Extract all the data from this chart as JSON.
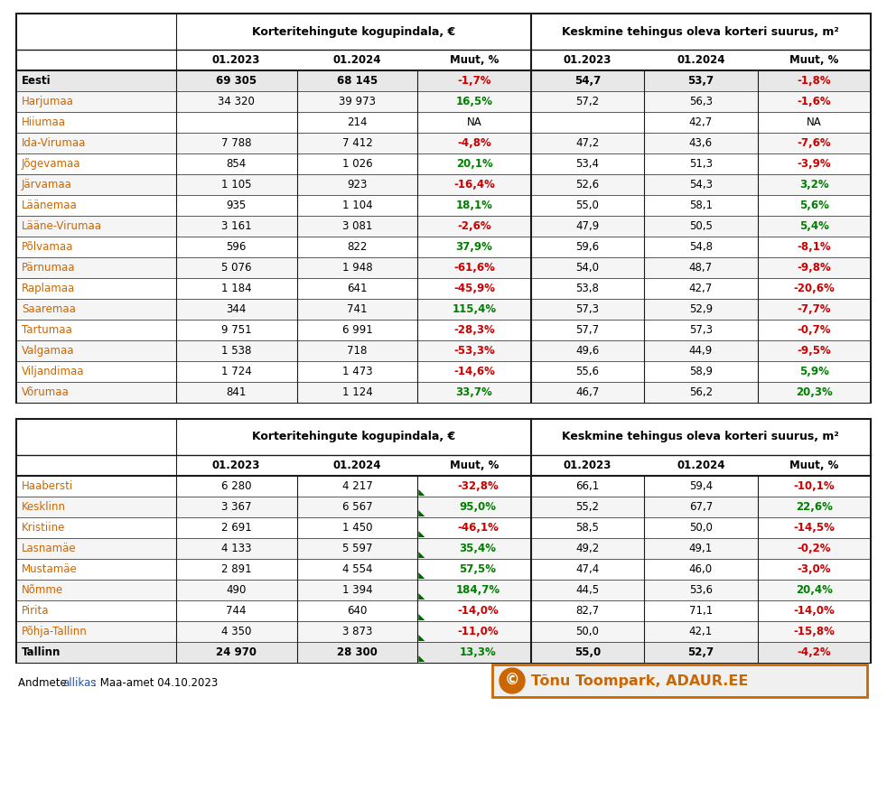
{
  "table1_header1": "Korteritehingute kogupindala, €",
  "table1_header2": "Keskmine tehingus oleva korteri suurus, m²",
  "col_headers": [
    "01.2023",
    "01.2024",
    "Muut, %"
  ],
  "table1_rows": [
    {
      "label": "Eesti",
      "bold": true,
      "v1": "69 305",
      "v2": "68 145",
      "pct1": "-1,7%",
      "pct1_color": "red",
      "v3": "54,7",
      "v4": "53,7",
      "pct2": "-1,8%",
      "pct2_color": "red"
    },
    {
      "label": "Harjumaa",
      "bold": false,
      "v1": "34 320",
      "v2": "39 973",
      "pct1": "16,5%",
      "pct1_color": "green",
      "v3": "57,2",
      "v4": "56,3",
      "pct2": "-1,6%",
      "pct2_color": "red"
    },
    {
      "label": "Hiiumaa",
      "bold": false,
      "v1": "",
      "v2": "214",
      "pct1": "NA",
      "pct1_color": "black",
      "v3": "",
      "v4": "42,7",
      "pct2": "NA",
      "pct2_color": "black"
    },
    {
      "label": "Ida-Virumaa",
      "bold": false,
      "v1": "7 788",
      "v2": "7 412",
      "pct1": "-4,8%",
      "pct1_color": "red",
      "v3": "47,2",
      "v4": "43,6",
      "pct2": "-7,6%",
      "pct2_color": "red"
    },
    {
      "label": "Jõgevamaa",
      "bold": false,
      "v1": "854",
      "v2": "1 026",
      "pct1": "20,1%",
      "pct1_color": "green",
      "v3": "53,4",
      "v4": "51,3",
      "pct2": "-3,9%",
      "pct2_color": "red"
    },
    {
      "label": "Järvamaa",
      "bold": false,
      "v1": "1 105",
      "v2": "923",
      "pct1": "-16,4%",
      "pct1_color": "red",
      "v3": "52,6",
      "v4": "54,3",
      "pct2": "3,2%",
      "pct2_color": "green"
    },
    {
      "label": "Läänemaa",
      "bold": false,
      "v1": "935",
      "v2": "1 104",
      "pct1": "18,1%",
      "pct1_color": "green",
      "v3": "55,0",
      "v4": "58,1",
      "pct2": "5,6%",
      "pct2_color": "green"
    },
    {
      "label": "Lääne-Virumaa",
      "bold": false,
      "v1": "3 161",
      "v2": "3 081",
      "pct1": "-2,6%",
      "pct1_color": "red",
      "v3": "47,9",
      "v4": "50,5",
      "pct2": "5,4%",
      "pct2_color": "green"
    },
    {
      "label": "Põlvamaa",
      "bold": false,
      "v1": "596",
      "v2": "822",
      "pct1": "37,9%",
      "pct1_color": "green",
      "v3": "59,6",
      "v4": "54,8",
      "pct2": "-8,1%",
      "pct2_color": "red"
    },
    {
      "label": "Pärnumaa",
      "bold": false,
      "v1": "5 076",
      "v2": "1 948",
      "pct1": "-61,6%",
      "pct1_color": "red",
      "v3": "54,0",
      "v4": "48,7",
      "pct2": "-9,8%",
      "pct2_color": "red"
    },
    {
      "label": "Raplamaa",
      "bold": false,
      "v1": "1 184",
      "v2": "641",
      "pct1": "-45,9%",
      "pct1_color": "red",
      "v3": "53,8",
      "v4": "42,7",
      "pct2": "-20,6%",
      "pct2_color": "red"
    },
    {
      "label": "Saaremaa",
      "bold": false,
      "v1": "344",
      "v2": "741",
      "pct1": "115,4%",
      "pct1_color": "green",
      "v3": "57,3",
      "v4": "52,9",
      "pct2": "-7,7%",
      "pct2_color": "red"
    },
    {
      "label": "Tartumaa",
      "bold": false,
      "v1": "9 751",
      "v2": "6 991",
      "pct1": "-28,3%",
      "pct1_color": "red",
      "v3": "57,7",
      "v4": "57,3",
      "pct2": "-0,7%",
      "pct2_color": "red"
    },
    {
      "label": "Valgamaa",
      "bold": false,
      "v1": "1 538",
      "v2": "718",
      "pct1": "-53,3%",
      "pct1_color": "red",
      "v3": "49,6",
      "v4": "44,9",
      "pct2": "-9,5%",
      "pct2_color": "red"
    },
    {
      "label": "Viljandimaa",
      "bold": false,
      "v1": "1 724",
      "v2": "1 473",
      "pct1": "-14,6%",
      "pct1_color": "red",
      "v3": "55,6",
      "v4": "58,9",
      "pct2": "5,9%",
      "pct2_color": "green"
    },
    {
      "label": "Võrumaa",
      "bold": false,
      "v1": "841",
      "v2": "1 124",
      "pct1": "33,7%",
      "pct1_color": "green",
      "v3": "46,7",
      "v4": "56,2",
      "pct2": "20,3%",
      "pct2_color": "green"
    }
  ],
  "table2_rows": [
    {
      "label": "Haabersti",
      "bold": false,
      "v1": "6 280",
      "v2": "4 217",
      "pct1": "-32,8%",
      "pct1_color": "red",
      "v3": "66,1",
      "v4": "59,4",
      "pct2": "-10,1%",
      "pct2_color": "red"
    },
    {
      "label": "Kesklinn",
      "bold": false,
      "v1": "3 367",
      "v2": "6 567",
      "pct1": "95,0%",
      "pct1_color": "green",
      "v3": "55,2",
      "v4": "67,7",
      "pct2": "22,6%",
      "pct2_color": "green"
    },
    {
      "label": "Kristiine",
      "bold": false,
      "v1": "2 691",
      "v2": "1 450",
      "pct1": "-46,1%",
      "pct1_color": "red",
      "v3": "58,5",
      "v4": "50,0",
      "pct2": "-14,5%",
      "pct2_color": "red"
    },
    {
      "label": "Lasnamäe",
      "bold": false,
      "v1": "4 133",
      "v2": "5 597",
      "pct1": "35,4%",
      "pct1_color": "green",
      "v3": "49,2",
      "v4": "49,1",
      "pct2": "-0,2%",
      "pct2_color": "red"
    },
    {
      "label": "Mustamäe",
      "bold": false,
      "v1": "2 891",
      "v2": "4 554",
      "pct1": "57,5%",
      "pct1_color": "green",
      "v3": "47,4",
      "v4": "46,0",
      "pct2": "-3,0%",
      "pct2_color": "red"
    },
    {
      "label": "Nõmme",
      "bold": false,
      "v1": "490",
      "v2": "1 394",
      "pct1": "184,7%",
      "pct1_color": "green",
      "v3": "44,5",
      "v4": "53,6",
      "pct2": "20,4%",
      "pct2_color": "green"
    },
    {
      "label": "Pirita",
      "bold": false,
      "v1": "744",
      "v2": "640",
      "pct1": "-14,0%",
      "pct1_color": "red",
      "v3": "82,7",
      "v4": "71,1",
      "pct2": "-14,0%",
      "pct2_color": "red"
    },
    {
      "label": "Põhja-Tallinn",
      "bold": false,
      "v1": "4 350",
      "v2": "3 873",
      "pct1": "-11,0%",
      "pct1_color": "red",
      "v3": "50,0",
      "v4": "42,1",
      "pct2": "-15,8%",
      "pct2_color": "red"
    },
    {
      "label": "Tallinn",
      "bold": true,
      "v1": "24 970",
      "v2": "28 300",
      "pct1": "13,3%",
      "pct1_color": "green",
      "v3": "55,0",
      "v4": "52,7",
      "pct2": "-4,2%",
      "pct2_color": "red"
    }
  ],
  "footer_text": "Andmete allikas: Maa-amet 04.10.2023",
  "watermark_text": "Tõnu Toompark, ADAUR.EE",
  "green_color": "#008000",
  "red_color": "#cc0000",
  "label_color": "#cc6600",
  "border_color": "#1a1a1a"
}
